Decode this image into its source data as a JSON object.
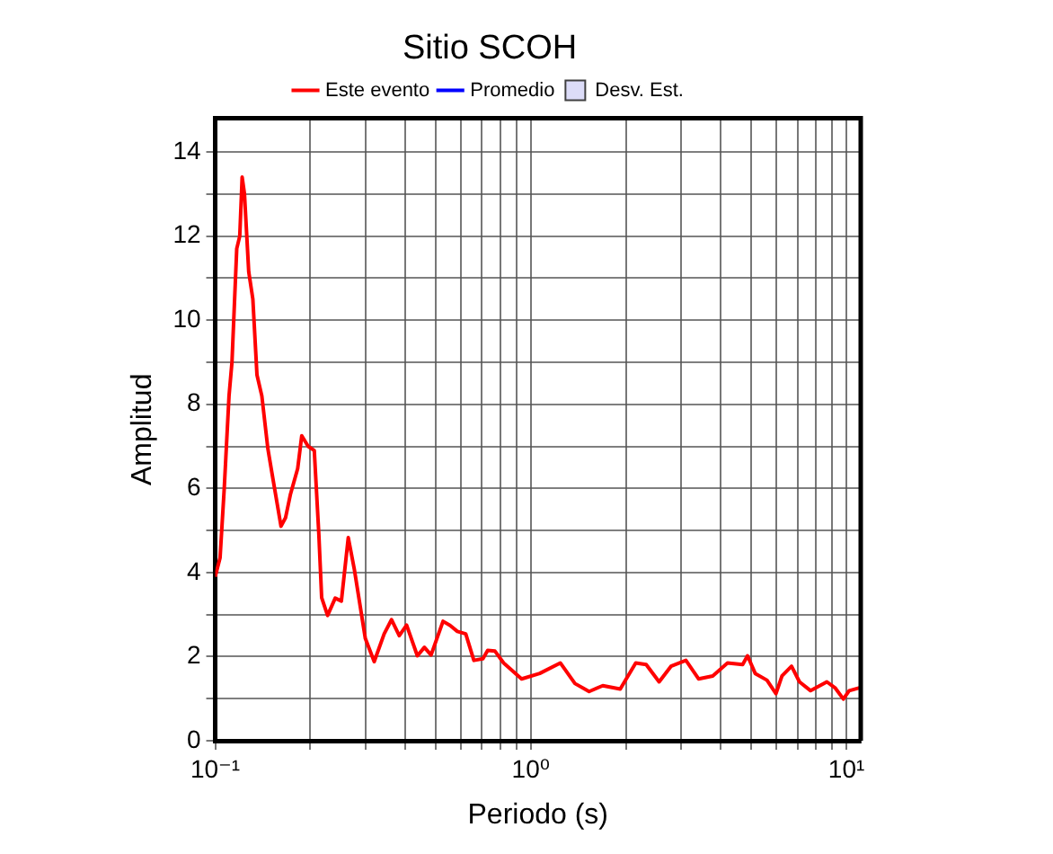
{
  "chart_data": {
    "type": "line",
    "title": "Sitio SCOH",
    "xlabel": "Periodo (s)",
    "ylabel": "Amplitud",
    "x": [
      0.1,
      0.1036,
      0.1068,
      0.1106,
      0.113,
      0.117,
      0.1196,
      0.1217,
      0.1238,
      0.1277,
      0.1316,
      0.1356,
      0.1405,
      0.1468,
      0.151,
      0.1616,
      0.167,
      0.173,
      0.1825,
      0.188,
      0.197,
      0.206,
      0.213,
      0.2174,
      0.227,
      0.24,
      0.251,
      0.264,
      0.276,
      0.299,
      0.319,
      0.343,
      0.362,
      0.383,
      0.404,
      0.437,
      0.46,
      0.483,
      0.527,
      0.555,
      0.585,
      0.622,
      0.66,
      0.705,
      0.73,
      0.77,
      0.82,
      0.935,
      1.067,
      1.24,
      1.38,
      1.53,
      1.69,
      1.92,
      2.15,
      2.32,
      2.55,
      2.78,
      3.1,
      3.4,
      3.77,
      4.2,
      4.69,
      4.86,
      5.14,
      5.6,
      5.98,
      6.25,
      6.7,
      7.1,
      7.7,
      8.67,
      9.2,
      9.78,
      10.2,
      11.0
    ],
    "series": [
      {
        "name": "Este evento",
        "color": "#ff0000",
        "values": [
          3.9,
          4.35,
          6.0,
          8.2,
          9.0,
          11.7,
          12.0,
          13.4,
          13.0,
          11.15,
          10.5,
          8.7,
          8.2,
          6.95,
          6.4,
          5.1,
          5.3,
          5.85,
          6.47,
          7.25,
          7.0,
          6.9,
          4.9,
          3.4,
          2.98,
          3.39,
          3.32,
          4.83,
          4.07,
          2.43,
          1.88,
          2.54,
          2.88,
          2.5,
          2.75,
          2.02,
          2.22,
          2.04,
          2.84,
          2.74,
          2.6,
          2.54,
          1.91,
          1.95,
          2.15,
          2.13,
          1.85,
          1.47,
          1.6,
          1.85,
          1.36,
          1.17,
          1.31,
          1.23,
          1.85,
          1.81,
          1.4,
          1.77,
          1.91,
          1.47,
          1.54,
          1.85,
          1.81,
          2.02,
          1.6,
          1.44,
          1.12,
          1.54,
          1.77,
          1.4,
          1.19,
          1.4,
          1.26,
          0.99,
          1.19,
          1.26
        ]
      },
      {
        "name": "Promedio",
        "type": "line",
        "color": "#0000ff",
        "values": [
          null,
          null,
          null,
          null,
          null,
          null,
          null,
          null,
          null,
          null,
          null,
          null,
          null,
          null,
          null,
          null,
          null,
          null,
          null,
          null,
          null,
          null,
          null,
          null,
          null,
          null,
          null,
          null,
          null,
          null,
          null,
          null,
          null,
          null,
          null,
          null,
          null,
          null,
          null,
          null,
          null,
          null,
          null,
          null,
          null,
          null,
          null,
          null,
          null,
          null,
          null,
          null,
          null,
          null,
          null,
          null,
          null,
          null,
          null,
          null,
          null,
          null,
          null,
          null,
          null,
          null,
          null,
          null,
          null,
          null,
          null,
          null,
          null,
          null,
          null,
          null
        ]
      },
      {
        "name": "Desv. Est.",
        "type": "area",
        "color": "#dcdcf8",
        "values": [
          null,
          null,
          null,
          null,
          null,
          null,
          null,
          null,
          null,
          null,
          null,
          null,
          null,
          null,
          null,
          null,
          null,
          null,
          null,
          null,
          null,
          null,
          null,
          null,
          null,
          null,
          null,
          null,
          null,
          null,
          null,
          null,
          null,
          null,
          null,
          null,
          null,
          null,
          null,
          null,
          null,
          null,
          null,
          null,
          null,
          null,
          null,
          null,
          null,
          null,
          null,
          null,
          null,
          null,
          null,
          null,
          null,
          null,
          null,
          null,
          null,
          null,
          null,
          null,
          null,
          null,
          null,
          null,
          null,
          null,
          null,
          null,
          null,
          null,
          null,
          null
        ]
      }
    ],
    "log": "x",
    "marker": "none",
    "grid": true,
    "legend": "top",
    "xlim": [
      0.1,
      11.1
    ],
    "xticks": [
      {
        "value": 0.1,
        "label": "10⁻¹"
      },
      {
        "value": 0.2,
        "label": null
      },
      {
        "value": 0.3,
        "label": null
      },
      {
        "value": 0.4,
        "label": null
      },
      {
        "value": 0.5,
        "label": null
      },
      {
        "value": 0.6,
        "label": null
      },
      {
        "value": 0.7,
        "label": null
      },
      {
        "value": 0.8,
        "label": null
      },
      {
        "value": 0.9,
        "label": null
      },
      {
        "value": 1,
        "label": "10⁰"
      },
      {
        "value": 2,
        "label": null
      },
      {
        "value": 3,
        "label": null
      },
      {
        "value": 4,
        "label": null
      },
      {
        "value": 5,
        "label": null
      },
      {
        "value": 6,
        "label": null
      },
      {
        "value": 7,
        "label": null
      },
      {
        "value": 8,
        "label": null
      },
      {
        "value": 9,
        "label": null
      },
      {
        "value": 10,
        "label": "10¹"
      }
    ],
    "ylim": [
      0,
      14.8
    ],
    "yticks": [
      0,
      {
        "value": 1,
        "label": null
      },
      2,
      {
        "value": 3,
        "label": null
      },
      4,
      {
        "value": 5,
        "label": null
      },
      6,
      {
        "value": 7,
        "label": null
      },
      8,
      {
        "value": 9,
        "label": null
      },
      10,
      {
        "value": 11,
        "label": null
      },
      12,
      {
        "value": 13,
        "label": null
      },
      14
    ]
  }
}
